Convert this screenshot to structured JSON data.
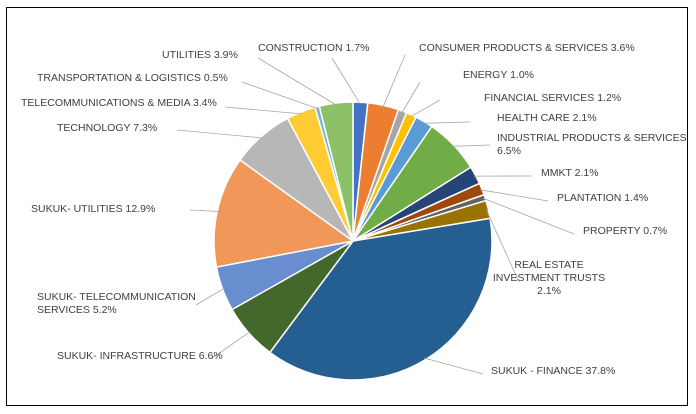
{
  "chart_data": {
    "type": "pie",
    "title": "",
    "start_angle_deg": 0,
    "direction": "clockwise",
    "legend": "none",
    "slices": [
      {
        "name": "CONSTRUCTION",
        "value": 1.7,
        "color": "#4472C4",
        "label": "CONSTRUCTION 1.7%"
      },
      {
        "name": "CONSUMER PRODUCTS & SERVICES",
        "value": 3.6,
        "color": "#ED7D31",
        "label": "CONSUMER PRODUCTS & SERVICES 3.6%"
      },
      {
        "name": "ENERGY",
        "value": 1.0,
        "color": "#A5A5A5",
        "label": "ENERGY 1.0%"
      },
      {
        "name": "FINANCIAL SERVICES",
        "value": 1.2,
        "color": "#FFC000",
        "label": "FINANCIAL SERVICES 1.2%"
      },
      {
        "name": "HEALTH CARE",
        "value": 2.1,
        "color": "#5B9BD5",
        "label": "HEALTH CARE 2.1%"
      },
      {
        "name": "INDUSTRIAL PRODUCTS & SERVICES",
        "value": 6.5,
        "color": "#70AD47",
        "label": [
          "INDUSTRIAL PRODUCTS & SERVICES",
          "6.5%"
        ]
      },
      {
        "name": "MMKT",
        "value": 2.1,
        "color": "#264478",
        "label": "MMKT 2.1%"
      },
      {
        "name": "PLANTATION",
        "value": 1.4,
        "color": "#9E480E",
        "label": "PLANTATION 1.4%"
      },
      {
        "name": "PROPERTY",
        "value": 0.7,
        "color": "#636363",
        "label": "PROPERTY 0.7%"
      },
      {
        "name": "REAL ESTATE INVESTMENT TRUSTS",
        "value": 2.1,
        "color": "#997300",
        "label": [
          "REAL ESTATE",
          "INVESTMENT TRUSTS",
          "2.1%"
        ]
      },
      {
        "name": "SUKUK - FINANCE",
        "value": 37.8,
        "color": "#255E91",
        "label": "SUKUK - FINANCE 37.8%"
      },
      {
        "name": "SUKUK- INFRASTRUCTURE",
        "value": 6.6,
        "color": "#43682B",
        "label": "SUKUK- INFRASTRUCTURE 6.6%"
      },
      {
        "name": "SUKUK- TELECOMMUNICATION SERVICES",
        "value": 5.2,
        "color": "#698ED0",
        "label": [
          "SUKUK- TELECOMMUNICATION",
          "SERVICES 5.2%"
        ]
      },
      {
        "name": "SUKUK- UTILITIES",
        "value": 12.9,
        "color": "#F1975A",
        "label": "SUKUK- UTILITIES 12.9%"
      },
      {
        "name": "TECHNOLOGY",
        "value": 7.3,
        "color": "#B7B7B7",
        "label": "TECHNOLOGY 7.3%"
      },
      {
        "name": "TELECOMMUNICATIONS & MEDIA",
        "value": 3.4,
        "color": "#FFCD33",
        "label": "TELECOMMUNICATIONS & MEDIA 3.4%"
      },
      {
        "name": "TRANSPORTATION & LOGISTICS",
        "value": 0.5,
        "color": "#7CAFDD",
        "label": "TRANSPORTATION & LOGISTICS 0.5%"
      },
      {
        "name": "UTILITIES",
        "value": 3.9,
        "color": "#8CC168",
        "label": "UTILITIES 3.9%"
      }
    ]
  }
}
